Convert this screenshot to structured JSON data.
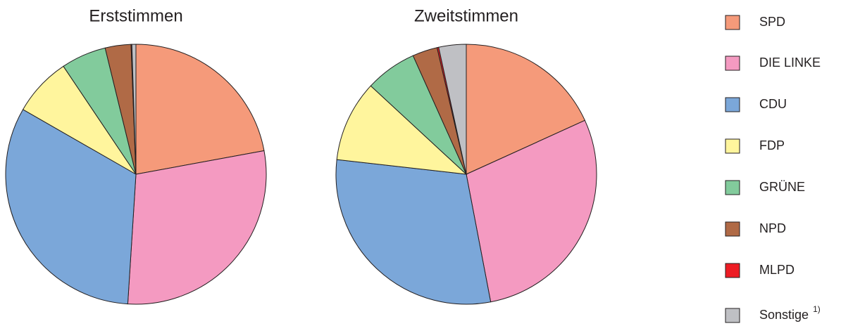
{
  "chart_data": [
    {
      "type": "pie",
      "title": "Erststimmen",
      "categories": [
        "SPD",
        "DIE LINKE",
        "CDU",
        "FDP",
        "GRÜNE",
        "NPD",
        "MLPD",
        "Sonstige"
      ],
      "category_footnotes": [
        null,
        null,
        null,
        null,
        null,
        null,
        null,
        "1)"
      ],
      "values": [
        22.1,
        28.9,
        32.3,
        7.3,
        5.6,
        3.2,
        0.1,
        0.5
      ],
      "colors": [
        "#f59a7a",
        "#f49ac1",
        "#7ba7d9",
        "#fff59d",
        "#82cb9c",
        "#b06a46",
        "#ed1c24",
        "#bfc0c4"
      ]
    },
    {
      "type": "pie",
      "title": "Zweitstimmen",
      "categories": [
        "SPD",
        "DIE LINKE",
        "CDU",
        "FDP",
        "GRÜNE",
        "NPD",
        "MLPD",
        "Sonstige"
      ],
      "values": [
        18.2,
        28.8,
        29.8,
        10.1,
        6.4,
        3.1,
        0.2,
        3.4
      ],
      "colors": [
        "#f59a7a",
        "#f49ac1",
        "#7ba7d9",
        "#fff59d",
        "#82cb9c",
        "#b06a46",
        "#ed1c24",
        "#bfc0c4"
      ]
    }
  ]
}
